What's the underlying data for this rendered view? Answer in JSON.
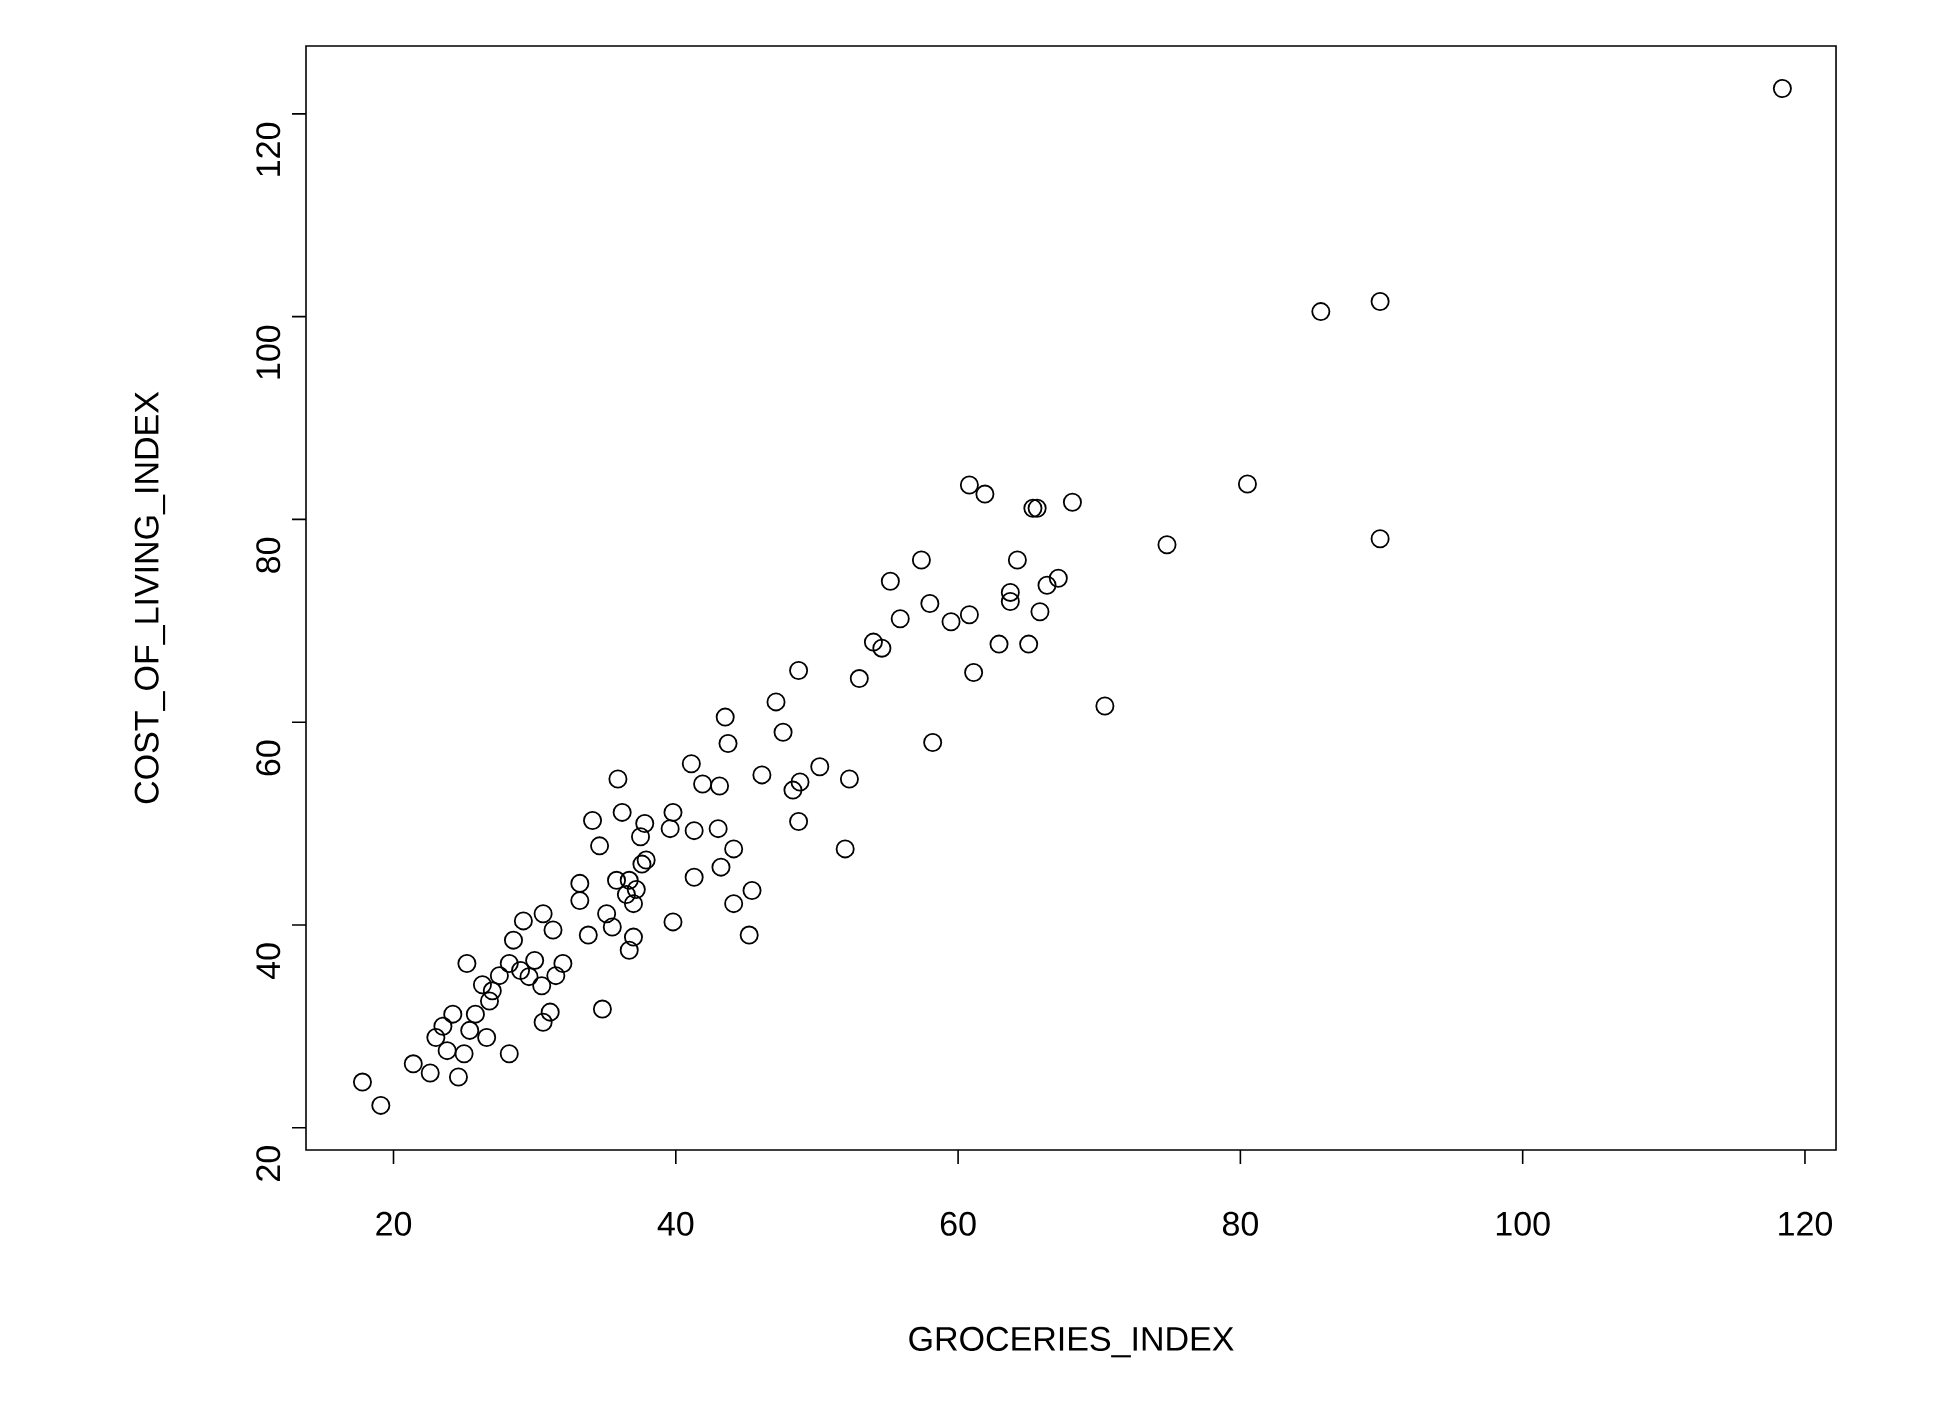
{
  "chart_data": {
    "type": "scatter",
    "xlabel": "GROCERIES_INDEX",
    "ylabel": "COST_OF_LIVING_INDEX",
    "marker": "circle",
    "color": "#000000",
    "xlim": [
      13.8,
      122.2
    ],
    "ylim": [
      17.8,
      126.7
    ],
    "xticks": [
      20,
      40,
      60,
      80,
      100,
      120
    ],
    "yticks": [
      20,
      40,
      60,
      80,
      100,
      120
    ],
    "x": [
      17.8,
      19.1,
      21.4,
      22.6,
      23,
      23.5,
      23.8,
      24.2,
      24.6,
      25,
      25.2,
      25.4,
      25.8,
      26.3,
      26.6,
      26.8,
      27,
      27.5,
      28.2,
      28.2,
      28.5,
      29,
      29.2,
      29.6,
      30,
      30.5,
      30.6,
      30.6,
      31.1,
      31.3,
      31.5,
      32,
      33.2,
      33.2,
      33.8,
      34.1,
      34.6,
      34.8,
      35.1,
      35.5,
      35.8,
      35.9,
      36.2,
      36.5,
      36.7,
      36.7,
      37,
      37,
      37.2,
      37.5,
      37.6,
      37.8,
      37.9,
      39.6,
      39.8,
      39.8,
      41.1,
      41.3,
      41.3,
      41.9,
      43,
      43.1,
      43.2,
      43.5,
      43.7,
      44.1,
      44.1,
      45.2,
      45.4,
      46.1,
      47.1,
      47.6,
      48.3,
      48.7,
      48.7,
      48.8,
      50.2,
      52,
      52.3,
      53,
      54,
      54.6,
      55.2,
      55.9,
      57.4,
      58,
      58.2,
      59.5,
      60.8,
      60.8,
      61.1,
      61.9,
      62.9,
      63.7,
      63.7,
      64.2,
      65,
      65.3,
      65.6,
      65.8,
      66.3,
      67.1,
      68.1,
      70.4,
      74.8,
      80.5,
      85.7,
      89.9,
      89.9,
      118.4
    ],
    "values": [
      24.5,
      22.2,
      26.3,
      25.4,
      28.9,
      30,
      27.6,
      31.2,
      25,
      27.3,
      36.2,
      29.6,
      31.2,
      34.1,
      28.9,
      32.5,
      33.5,
      35,
      27.3,
      36.2,
      38.5,
      35.5,
      40.4,
      34.9,
      36.5,
      34,
      30.4,
      41.1,
      31.4,
      39.5,
      35,
      36.2,
      42.4,
      44.1,
      39,
      50.3,
      47.8,
      31.7,
      41.1,
      39.8,
      44.4,
      54.4,
      51.1,
      43,
      37.5,
      44.4,
      38.8,
      42.1,
      43.5,
      48.7,
      46,
      50,
      46.4,
      49.5,
      51.1,
      40.3,
      55.9,
      49.3,
      44.7,
      53.9,
      49.5,
      53.7,
      45.7,
      60.5,
      57.9,
      47.5,
      42.1,
      39,
      43.4,
      54.8,
      62,
      59,
      53.3,
      65.1,
      50.2,
      54.1,
      55.6,
      47.5,
      54.4,
      64.3,
      67.9,
      67.3,
      73.9,
      70.2,
      76,
      71.7,
      58,
      69.9,
      83.4,
      70.6,
      64.9,
      82.5,
      67.7,
      72.8,
      71.9,
      76,
      67.7,
      81.1,
      81.1,
      70.9,
      73.5,
      74.2,
      81.7,
      61.6,
      77.5,
      83.5,
      100.5,
      101.5,
      78.1,
      122.5
    ]
  }
}
